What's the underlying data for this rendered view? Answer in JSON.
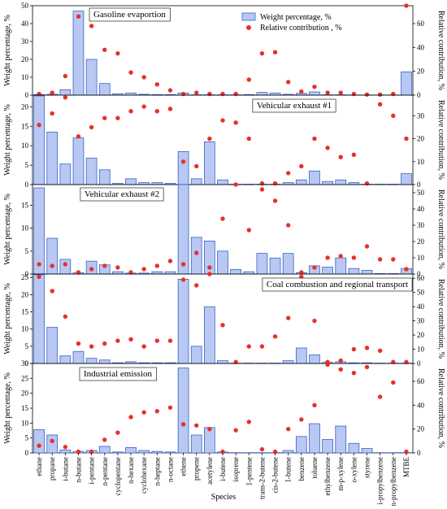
{
  "chart_data": {
    "type": "bar",
    "xlabel": "Species",
    "categories": [
      "ethane",
      "propane",
      "i-butane",
      "n-butane",
      "i-pentane",
      "n-pentane",
      "cyclopentane",
      "n-hexane",
      "cyclohexane",
      "n-heptane",
      "n-octane",
      "ethene",
      "propene",
      "acetylene",
      "i-butene",
      "isoprene",
      "1-pentene",
      "trans-2-butene",
      "cis-2-butene",
      "1-butene",
      "benzene",
      "toluene",
      "ethylbenzene",
      "m-p-xylene",
      "o-xylene",
      "styrene",
      "i-propylbenzene",
      "n-propylbenzene",
      "MTBE"
    ],
    "legend": {
      "bar_label": "Weight percentage, %",
      "dot_label": "Relative contribution , %",
      "placement": "top-right of first panel"
    },
    "colors": {
      "bar_fill": "#b8c8f2",
      "bar_stroke": "#3a62c8",
      "dot": "#e8302a"
    },
    "panels": [
      {
        "title": "Gasoline evaportion",
        "ylabel_left": "Weight percentage, %",
        "ylabel_right": "Relative contribution, %",
        "left_ylim": [
          0,
          50
        ],
        "left_ticks": [
          0,
          10,
          20,
          30,
          40,
          50
        ],
        "right_ylim": [
          0,
          75
        ],
        "right_ticks": [
          0,
          20,
          40,
          60
        ],
        "series": [
          {
            "name": "Weight percentage, %",
            "kind": "bar",
            "values": [
              0.3,
              0.5,
              3.0,
              47.0,
              20.0,
              6.5,
              0.8,
              1.2,
              0.5,
              0.3,
              0.3,
              1.2,
              0.2,
              0.2,
              0.2,
              0.2,
              0.3,
              1.5,
              1.2,
              0.5,
              1.0,
              1.8,
              0.2,
              0.2,
              0.1,
              0.1,
              0.1,
              0.1,
              13.0
            ]
          },
          {
            "name": "Relative contribution , %",
            "kind": "dot",
            "values": [
              1,
              2,
              16,
              66,
              58,
              38,
              35,
              19,
              15,
              9,
              4,
              1,
              2,
              1,
              1,
              1,
              13,
              35,
              36,
              11,
              3,
              7,
              2,
              2,
              1,
              0.5,
              0.5,
              1,
              75
            ]
          }
        ]
      },
      {
        "title": "Vehicular exhaust #1",
        "ylabel_left": "Weight percentage, %",
        "ylabel_right": "Relative contribution, %",
        "left_ylim": [
          0,
          23
        ],
        "left_ticks": [
          0,
          5,
          10,
          15,
          20
        ],
        "right_ylim": [
          0,
          39
        ],
        "right_ticks": [
          0,
          10,
          20,
          30
        ],
        "series": [
          {
            "name": "Weight percentage, %",
            "kind": "bar",
            "values": [
              22.8,
              13.5,
              5.3,
              12.0,
              6.8,
              3.8,
              0.3,
              1.5,
              0.5,
              0.5,
              0.3,
              8.5,
              1.5,
              11.0,
              1.2,
              0.1,
              0.1,
              0.1,
              0.1,
              0.5,
              1.2,
              3.5,
              0.8,
              1.2,
              0.5,
              0.1,
              0.1,
              0.1,
              2.8
            ]
          },
          {
            "name": "Relative contribution , %",
            "kind": "dot",
            "values": [
              26,
              31,
              38,
              21,
              25,
              29,
              29,
              32,
              34,
              32,
              33,
              10,
              8,
              20,
              28,
              27,
              20,
              0.5,
              0.5,
              5,
              8,
              20,
              16,
              12,
              13,
              0.5,
              35,
              30,
              20
            ]
          }
        ]
      },
      {
        "title": "Vehicular exhaust #2",
        "ylabel_left": "Weight percentage, %",
        "ylabel_right": "Relative contribution, %",
        "left_ylim": [
          0,
          19.5
        ],
        "left_ticks": [
          0,
          5,
          10,
          15
        ],
        "right_ylim": [
          0,
          55
        ],
        "right_ticks": [
          0,
          10,
          20,
          30,
          40,
          50
        ],
        "series": [
          {
            "name": "Weight percentage, %",
            "kind": "bar",
            "values": [
              18.8,
              7.8,
              3.2,
              0.3,
              2.8,
              2.0,
              0.5,
              0.2,
              0.2,
              0.5,
              0.5,
              19.5,
              8.0,
              7.2,
              5.0,
              1.0,
              0.5,
              4.5,
              3.5,
              4.5,
              0.3,
              1.8,
              1.5,
              3.5,
              1.2,
              0.8,
              0.1,
              0.1,
              1.2
            ]
          },
          {
            "name": "Relative contribution , %",
            "kind": "dot",
            "values": [
              6,
              5,
              6,
              1,
              3,
              5,
              4,
              1,
              3,
              5,
              8,
              6,
              13,
              4,
              34,
              55,
              27,
              52,
              45,
              30,
              1,
              4,
              10,
              11,
              10,
              17,
              9,
              9,
              3
            ]
          }
        ]
      },
      {
        "title": "Coal combustion and regional transport",
        "ylabel_left": "Weight percentage, %",
        "ylabel_right": "Relative contribution, %",
        "left_ylim": [
          0,
          26
        ],
        "left_ticks": [
          0,
          5,
          10,
          15,
          20,
          25
        ],
        "right_ylim": [
          0,
          63
        ],
        "right_ticks": [
          0,
          10,
          20,
          30,
          40,
          50,
          60
        ],
        "series": [
          {
            "name": "Weight percentage, %",
            "kind": "bar",
            "values": [
              25.8,
              10.5,
              2.2,
              3.5,
              1.5,
              1.0,
              0.2,
              0.5,
              0.2,
              0.2,
              0.2,
              24.5,
              5.0,
              16.5,
              0.8,
              0.1,
              0.1,
              0.1,
              0.1,
              0.8,
              4.5,
              2.5,
              0.3,
              0.5,
              0.2,
              0.2,
              0.1,
              0.1,
              0.1
            ]
          },
          {
            "name": "Relative contribution , %",
            "kind": "dot",
            "values": [
              61,
              51,
              33,
              14,
              12,
              14,
              16,
              17,
              12,
              16,
              16,
              59,
              55,
              63,
              27,
              1,
              12,
              12,
              19,
              32,
              61,
              30,
              1,
              2,
              10,
              11,
              9,
              1,
              1
            ]
          }
        ]
      },
      {
        "title": "Industrial emission",
        "ylabel_left": "Weight percentage, %",
        "ylabel_right": "Relative contribution, %",
        "left_ylim": [
          0,
          30
        ],
        "left_ticks": [
          0,
          5,
          10,
          15,
          20,
          25,
          30
        ],
        "right_ylim": [
          0,
          75
        ],
        "right_ticks": [
          0,
          20,
          40,
          60
        ],
        "series": [
          {
            "name": "Weight percentage, %",
            "kind": "bar",
            "values": [
              7.8,
              6.0,
              1.0,
              0.5,
              0.8,
              2.2,
              0.3,
              1.8,
              0.8,
              0.5,
              0.3,
              28.5,
              6.0,
              8.5,
              0.3,
              0.1,
              0.1,
              0.1,
              0.1,
              0.8,
              5.5,
              9.8,
              4.5,
              9.0,
              3.2,
              1.5,
              0.1,
              0.1,
              0.1
            ]
          },
          {
            "name": "Relative contribution , %",
            "kind": "dot",
            "values": [
              6,
              10,
              5,
              1,
              1,
              11,
              17,
              30,
              34,
              35,
              38,
              24,
              23,
              20,
              1,
              19,
              26,
              3,
              1,
              20,
              28,
              40,
              74,
              70,
              67,
              72,
              47,
              59,
              1
            ]
          }
        ]
      }
    ]
  }
}
